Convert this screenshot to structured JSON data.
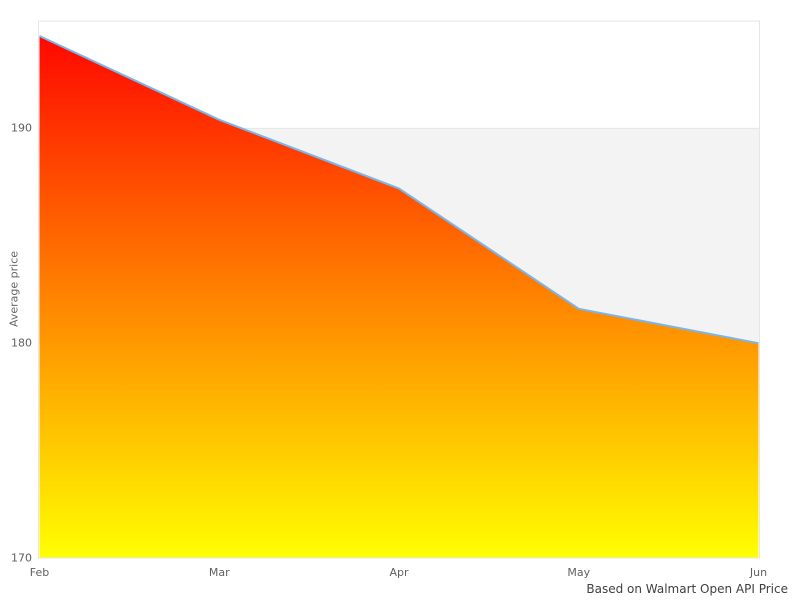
{
  "chart_data": {
    "type": "area",
    "title": "",
    "categories": [
      "Feb",
      "Mar",
      "Apr",
      "May",
      "Jun"
    ],
    "series": [
      {
        "name": "Average price",
        "values": [
          194.3,
          190.4,
          187.2,
          181.6,
          180.0
        ]
      }
    ],
    "xlabel": "",
    "ylabel": "Average price",
    "yticks": [
      190,
      180,
      170
    ],
    "ylim": [
      170,
      195
    ],
    "grid": "off",
    "legend": "none",
    "alternate_band": [
      180,
      190
    ],
    "caption": "Based on Walmart Open API Price",
    "colors": {
      "area_gradient_top": "#ff0000",
      "area_gradient_bottom": "#ffff00",
      "line": "#7cb5ec",
      "band": "#f3f3f3",
      "plot_border": "#e6e6e6",
      "tick_label": "#606060",
      "axis_title": "#666666",
      "caption_text": "#404040",
      "background": "#ffffff"
    }
  }
}
